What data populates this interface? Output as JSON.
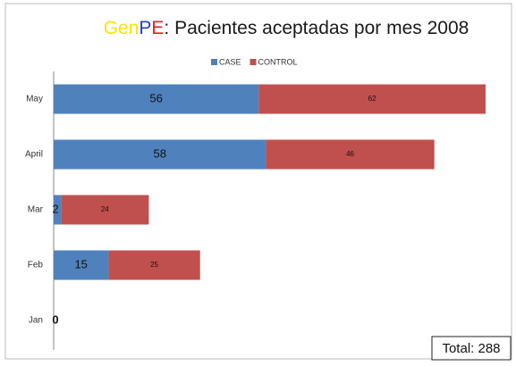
{
  "chart_data": {
    "type": "stacked-barh",
    "title": [
      {
        "text": "Gen",
        "color": "#f5e400"
      },
      {
        "text": "P",
        "color": "#1f3fd0"
      },
      {
        "text": "E",
        "color": "#e02020"
      },
      {
        "text": ": Pacientes aceptadas por mes 2008",
        "color": "#1a1a1a"
      }
    ],
    "categories": [
      "May",
      "April",
      "Mar",
      "Feb",
      "Jan"
    ],
    "series": [
      {
        "name": "CASE",
        "color": "#4f81bd",
        "values": [
          56,
          58,
          2,
          15,
          0
        ]
      },
      {
        "name": "CONTROL",
        "color": "#c0504d",
        "values": [
          62,
          46,
          24,
          25,
          null
        ]
      }
    ],
    "legend": "top",
    "annotation": "Total: 288"
  }
}
